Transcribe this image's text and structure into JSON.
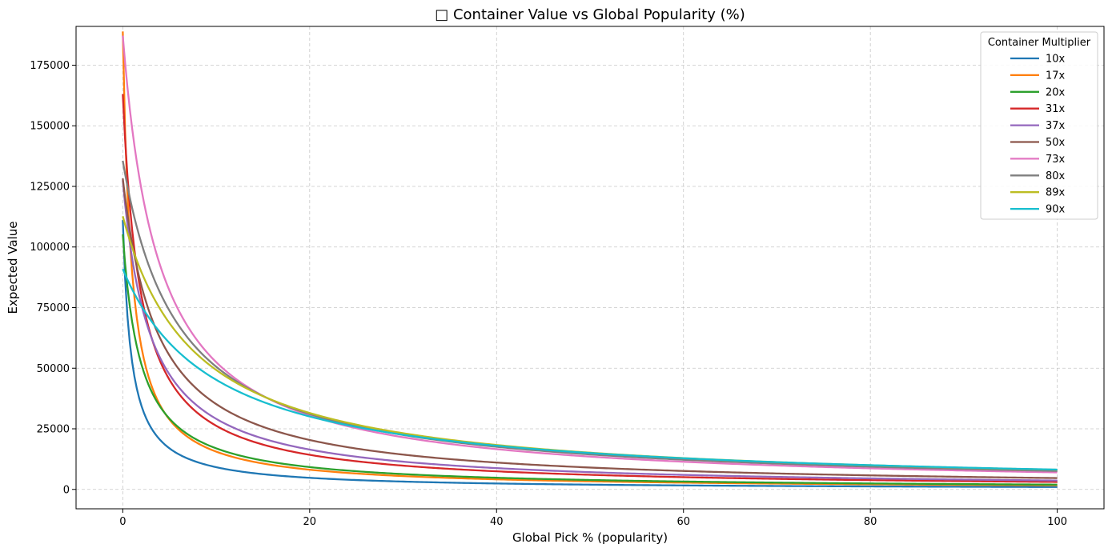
{
  "chart_data": {
    "type": "line",
    "title": "□ Container Value vs Global Popularity (%)",
    "xlabel": "Global Pick % (popularity)",
    "ylabel": "Expected Value",
    "xlim": [
      -5,
      105
    ],
    "ylim": [
      -8000,
      191000
    ],
    "x_ticks": [
      0,
      20,
      40,
      60,
      80,
      100
    ],
    "y_ticks": [
      0,
      25000,
      50000,
      75000,
      100000,
      125000,
      150000,
      175000
    ],
    "x_tick_labels": [
      "0",
      "20",
      "40",
      "60",
      "80",
      "100"
    ],
    "y_tick_labels": [
      "0",
      "25000",
      "50000",
      "75000",
      "100000",
      "125000",
      "150000",
      "175000"
    ],
    "grid": true,
    "legend_title": "Container Multiplier",
    "legend_position": "top-right",
    "x_range": [
      0,
      100
    ],
    "series": [
      {
        "name": "10x",
        "color": "#1f77b4",
        "points": [
          [
            0.1,
            100000
          ],
          [
            1,
            50000
          ],
          [
            2,
            33333
          ],
          [
            3,
            25000
          ],
          [
            5,
            16667
          ],
          [
            10,
            9091
          ],
          [
            20,
            4762
          ],
          [
            40,
            2439
          ],
          [
            60,
            1639
          ],
          [
            80,
            1235
          ],
          [
            100,
            990
          ]
        ]
      },
      {
        "name": "17x",
        "color": "#ff7f0e",
        "points": [
          [
            0.1,
            170000
          ],
          [
            1,
            85000
          ],
          [
            2,
            56667
          ],
          [
            3,
            42500
          ],
          [
            5,
            28333
          ],
          [
            10,
            15455
          ],
          [
            20,
            8095
          ],
          [
            40,
            4146
          ],
          [
            60,
            2787
          ],
          [
            80,
            2099
          ],
          [
            100,
            1683
          ]
        ]
      },
      {
        "name": "20x",
        "color": "#2ca02c",
        "points": [
          [
            0.1,
            100000
          ],
          [
            1,
            66667
          ],
          [
            2,
            50000
          ],
          [
            3,
            40000
          ],
          [
            5,
            28571
          ],
          [
            10,
            18182
          ],
          [
            20,
            9524
          ],
          [
            40,
            4878
          ],
          [
            60,
            3279
          ],
          [
            80,
            2469
          ],
          [
            100,
            1980
          ]
        ]
      },
      {
        "name": "31x",
        "color": "#d62728",
        "points": [
          [
            0.1,
            155000
          ],
          [
            1,
            103333
          ],
          [
            2,
            77500
          ],
          [
            3,
            62000
          ],
          [
            5,
            44286
          ],
          [
            10,
            28182
          ],
          [
            20,
            14762
          ],
          [
            40,
            7561
          ],
          [
            60,
            5082
          ],
          [
            80,
            3827
          ],
          [
            100,
            3069
          ]
        ]
      },
      {
        "name": "37x",
        "color": "#9467bd",
        "points": [
          [
            0.1,
            123333
          ],
          [
            1,
            92500
          ],
          [
            2,
            74000
          ],
          [
            3,
            61667
          ],
          [
            5,
            46250
          ],
          [
            10,
            30833
          ],
          [
            20,
            17619
          ],
          [
            40,
            9024
          ],
          [
            60,
            6066
          ],
          [
            80,
            4568
          ],
          [
            100,
            3663
          ]
        ]
      },
      {
        "name": "50x",
        "color": "#8c564b",
        "points": [
          [
            0.1,
            125000
          ],
          [
            1,
            100000
          ],
          [
            2,
            83333
          ],
          [
            3,
            71429
          ],
          [
            5,
            55556
          ],
          [
            10,
            38462
          ],
          [
            20,
            20833
          ],
          [
            40,
            11364
          ],
          [
            60,
            7692
          ],
          [
            80,
            5814
          ],
          [
            100,
            4673
          ]
        ]
      },
      {
        "name": "73x",
        "color": "#e377c2",
        "points": [
          [
            0.1,
            182500
          ],
          [
            1,
            146000
          ],
          [
            2,
            121667
          ],
          [
            3,
            104286
          ],
          [
            5,
            81111
          ],
          [
            10,
            56154
          ],
          [
            20,
            30417
          ],
          [
            40,
            16591
          ],
          [
            60,
            11406
          ],
          [
            80,
            8690
          ],
          [
            100,
            7019
          ]
        ]
      },
      {
        "name": "80x",
        "color": "#7f7f7f",
        "points": [
          [
            0.1,
            133333
          ],
          [
            1,
            114286
          ],
          [
            2,
            100000
          ],
          [
            3,
            88889
          ],
          [
            5,
            72727
          ],
          [
            10,
            53333
          ],
          [
            20,
            32000
          ],
          [
            40,
            17778
          ],
          [
            60,
            12308
          ],
          [
            80,
            9412
          ],
          [
            100,
            7619
          ]
        ]
      },
      {
        "name": "89x",
        "color": "#bcbd22",
        "points": [
          [
            0.1,
            111250
          ],
          [
            1,
            98889
          ],
          [
            2,
            89000
          ],
          [
            3,
            80909
          ],
          [
            5,
            68462
          ],
          [
            10,
            52353
          ],
          [
            20,
            32364
          ],
          [
            40,
            18542
          ],
          [
            60,
            12986
          ],
          [
            80,
            9995
          ],
          [
            100,
            8125
          ]
        ]
      },
      {
        "name": "90x",
        "color": "#17becf",
        "points": [
          [
            0.1,
            90000
          ],
          [
            1,
            81818
          ],
          [
            2,
            75000
          ],
          [
            3,
            69231
          ],
          [
            5,
            60000
          ],
          [
            10,
            45000
          ],
          [
            20,
            30000
          ],
          [
            40,
            18000
          ],
          [
            60,
            12857
          ],
          [
            80,
            10000
          ],
          [
            100,
            8182
          ]
        ]
      }
    ]
  }
}
